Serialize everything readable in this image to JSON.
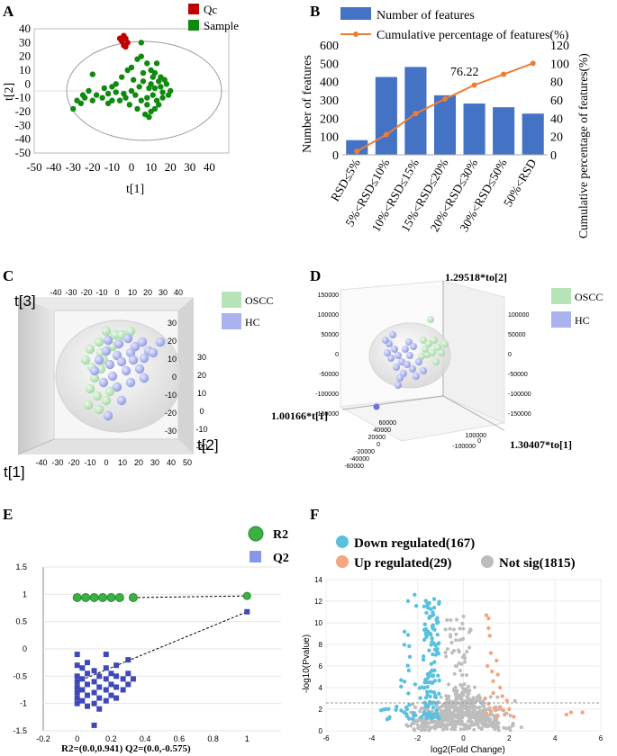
{
  "panels": [
    "A",
    "B",
    "C",
    "D",
    "E",
    "F"
  ],
  "chart_data": [
    {
      "panel": "A",
      "type": "scatter",
      "xlabel": "t[1]",
      "ylabel": "t[2]",
      "xlim": [
        -50,
        50
      ],
      "ylim": [
        -50,
        40
      ],
      "xticks": [
        -50,
        -40,
        -30,
        -20,
        -10,
        0,
        10,
        20,
        30,
        40
      ],
      "yticks": [
        40,
        30,
        20,
        10,
        0,
        -10,
        -20,
        -30,
        -40,
        -50
      ],
      "legend": [
        "Qc",
        "Sample"
      ],
      "colors": {
        "Qc": "#c00000",
        "Sample": "#0f8a0f"
      },
      "series": [
        {
          "name": "Qc",
          "points": [
            [
              -4,
              35
            ],
            [
              -3,
              33
            ],
            [
              -5,
              31
            ],
            [
              -2,
              30
            ],
            [
              -4,
              28
            ],
            [
              -3,
              27
            ],
            [
              -6,
              33
            ]
          ]
        },
        {
          "name": "Sample",
          "points": [
            [
              5,
              30
            ],
            [
              -20,
              7
            ],
            [
              -28,
              -12
            ],
            [
              -30,
              -18
            ],
            [
              -25,
              -8
            ],
            [
              -22,
              -5
            ],
            [
              -15,
              -10
            ],
            [
              -12,
              -7
            ],
            [
              -10,
              -2
            ],
            [
              -8,
              0
            ],
            [
              -5,
              5
            ],
            [
              -2,
              10
            ],
            [
              0,
              12
            ],
            [
              3,
              18
            ],
            [
              5,
              20
            ],
            [
              8,
              15
            ],
            [
              10,
              10
            ],
            [
              12,
              8
            ],
            [
              15,
              5
            ],
            [
              18,
              0
            ],
            [
              20,
              -5
            ],
            [
              16,
              -10
            ],
            [
              14,
              -15
            ],
            [
              12,
              -18
            ],
            [
              10,
              -20
            ],
            [
              8,
              -15
            ],
            [
              5,
              -12
            ],
            [
              2,
              -8
            ],
            [
              0,
              -5
            ],
            [
              -3,
              -10
            ],
            [
              -6,
              -12
            ],
            [
              -8,
              -6
            ],
            [
              4,
              -2
            ],
            [
              6,
              2
            ],
            [
              9,
              -3
            ],
            [
              11,
              -8
            ],
            [
              13,
              -12
            ],
            [
              15,
              -2
            ],
            [
              17,
              3
            ],
            [
              19,
              -8
            ],
            [
              7,
              -22
            ],
            [
              3,
              -18
            ],
            [
              -1,
              -15
            ],
            [
              -4,
              -7
            ],
            [
              1,
              3
            ],
            [
              10,
              0
            ],
            [
              12,
              -3
            ],
            [
              14,
              2
            ],
            [
              16,
              -6
            ],
            [
              -18,
              -8
            ],
            [
              -14,
              -3
            ],
            [
              -10,
              -12
            ],
            [
              6,
              8
            ],
            [
              8,
              -10
            ],
            [
              11,
              5
            ],
            [
              -26,
              -14
            ],
            [
              -24,
              -10
            ],
            [
              -20,
              -12
            ],
            [
              9,
              -24
            ],
            [
              -12,
              -14
            ],
            [
              13,
              15
            ]
          ]
        }
      ]
    },
    {
      "panel": "B",
      "type": "bar",
      "legend": [
        "Number of features",
        "Cumulative percentage of features(%)"
      ],
      "categories": [
        "RSD≤5%",
        "5%<RSD≤10%",
        "10%<RSD≤15%",
        "15%<RSD≤20%",
        "20%<RSD≤30%",
        "30%<RSD≤50%",
        "50%<RSD"
      ],
      "values": [
        80,
        425,
        480,
        325,
        280,
        260,
        225
      ],
      "cumulative": [
        3.8,
        22,
        45,
        61,
        76.22,
        88,
        100
      ],
      "annotation": "76.22",
      "ylabel": "Number of features",
      "y2label": "Cumulative percentage of features(%)",
      "ylim": [
        0,
        600
      ],
      "y2lim": [
        0,
        120
      ],
      "yticks": [
        600,
        500,
        400,
        300,
        200,
        100,
        0
      ],
      "y2ticks": [
        120,
        100,
        80,
        60,
        40,
        20,
        0
      ],
      "bar_color": "#4472c4",
      "line_color": "#ed7d31"
    },
    {
      "panel": "C",
      "type": "scatter",
      "legend": [
        "OSCC",
        "HC"
      ],
      "axis_labels": [
        "t[3]",
        "t[2]",
        "t[1]"
      ],
      "top_ticks": [
        "-40",
        "-30",
        "-20",
        "-10",
        "0",
        "10",
        "20",
        "30",
        "40"
      ],
      "right_ticks": [
        "30",
        "20",
        "10",
        "0",
        "-10",
        "-20",
        "-30"
      ],
      "bottom_ticks": [
        "-40",
        "-30",
        "-20",
        "-10",
        "0",
        "10",
        "20",
        "30",
        "40",
        "50"
      ],
      "side_ticks": [
        "30",
        "20",
        "10",
        "0",
        "-10",
        "-20"
      ],
      "colors": {
        "OSCC": "#b7e4b6",
        "HC": "#aab3ee"
      }
    },
    {
      "panel": "D",
      "type": "scatter",
      "legend": [
        "OSCC",
        "HC"
      ],
      "axis_labels": [
        "1.29518*to[2]",
        "1.00166*t[1]",
        "1.30407*to[1]"
      ],
      "left_ticks": [
        "150000",
        "100000",
        "50000",
        "0",
        "-50000",
        "-100000",
        "-150000"
      ],
      "right_ticks": [
        "100000",
        "50000",
        "0",
        "-50000",
        "-100000",
        "-150000"
      ],
      "bottom_ticks": [
        "-60000",
        "-40000",
        "-20000",
        "0",
        "20000",
        "40000",
        "60000"
      ],
      "floor_ticks": [
        "-100000",
        "0",
        "100000"
      ],
      "colors": {
        "OSCC": "#b7e4b6",
        "HC": "#aab3ee"
      }
    },
    {
      "panel": "E",
      "type": "scatter",
      "legend": [
        "R2",
        "Q2"
      ],
      "xlim": [
        -0.2,
        1.2
      ],
      "ylim": [
        -1.5,
        1.5
      ],
      "xticks": [
        "-0.2",
        "0",
        "0.2",
        "0.4",
        "0.6",
        "0.8",
        "1"
      ],
      "yticks": [
        "1.5",
        "1",
        "0.5",
        "0",
        "-0.5",
        "-1",
        "-1.5"
      ],
      "footer": "R2=(0.0,0.941) Q2=(0.0,-0.575)",
      "colors": {
        "R2": "#3cb043",
        "Q2": "#3f48b8"
      },
      "r2_x": [
        0,
        0.05,
        0.1,
        0.15,
        0.2,
        0.25,
        0.33
      ],
      "r2_value": 0.94,
      "r2_end": [
        1,
        0.97
      ],
      "q2_end": [
        1,
        0.68
      ],
      "q2_columns": [
        {
          "x": 0,
          "y": [
            -0.1,
            -0.3,
            -0.5,
            -0.6,
            -0.7,
            -0.8,
            -0.9,
            -1.0
          ]
        },
        {
          "x": 0.03,
          "y": [
            -0.35,
            -0.55,
            -0.75,
            -0.95
          ]
        },
        {
          "x": 0.06,
          "y": [
            -0.25,
            -0.45,
            -0.65,
            -0.85,
            -1.05
          ]
        },
        {
          "x": 0.1,
          "y": [
            -0.4,
            -0.6,
            -0.8,
            -1.0,
            -1.4
          ]
        },
        {
          "x": 0.13,
          "y": [
            -0.5,
            -0.7,
            -0.9,
            -1.1
          ]
        },
        {
          "x": 0.17,
          "y": [
            -0.1,
            -0.35,
            -0.55,
            -0.75,
            -0.95
          ]
        },
        {
          "x": 0.2,
          "y": [
            -0.45,
            -0.65,
            -0.85
          ]
        },
        {
          "x": 0.23,
          "y": [
            -0.3,
            -0.5,
            -0.7,
            -0.9
          ]
        },
        {
          "x": 0.27,
          "y": [
            -0.55,
            -0.75
          ]
        },
        {
          "x": 0.3,
          "y": [
            -0.2,
            -0.45,
            -0.65
          ]
        },
        {
          "x": 0.33,
          "y": [
            -0.55
          ]
        }
      ]
    },
    {
      "panel": "F",
      "type": "scatter",
      "legend": [
        "Down regulated(167)",
        "Up regulated(29)",
        "Not sig(1815)"
      ],
      "xlabel": "log2(Fold Change)",
      "ylabel": "-log10(Pvalue)",
      "xlim": [
        -6,
        6
      ],
      "ylim": [
        0,
        14
      ],
      "xticks": [
        "-6",
        "-4",
        "-2",
        "0",
        "2",
        "4",
        "6"
      ],
      "yticks": [
        "14",
        "12",
        "10",
        "8",
        "6",
        "4",
        "2",
        "0"
      ],
      "colors": {
        "down": "#5bc0de",
        "up": "#f4a582",
        "ns": "#bdbdbd"
      }
    }
  ]
}
